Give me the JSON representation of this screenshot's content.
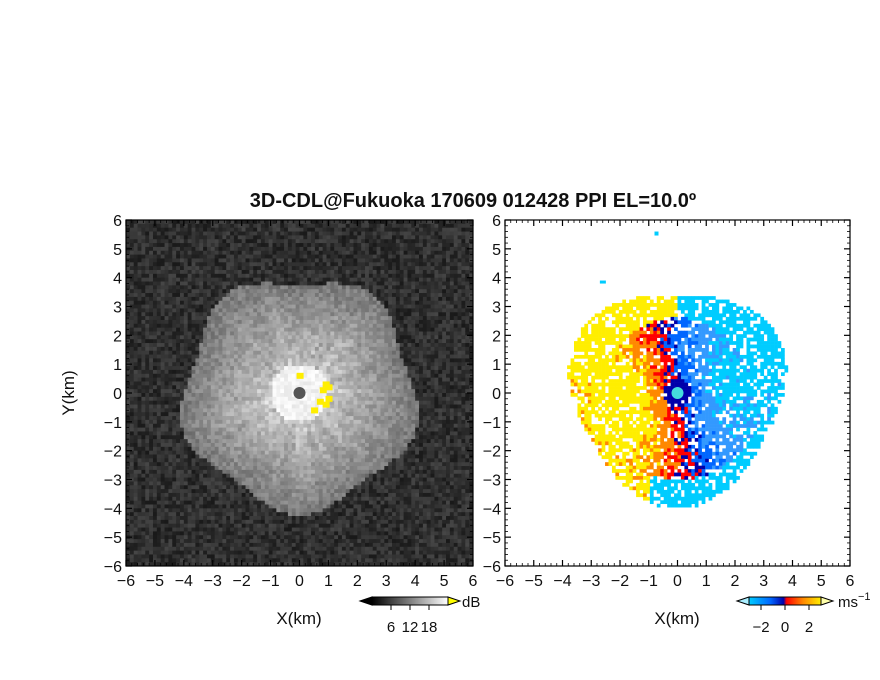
{
  "title": "3D-CDL@Fukuoka 170609 012428 PPI EL=10.0º",
  "chart_data": [
    {
      "type": "heatmap",
      "panel": "left",
      "field": "signal-to-noise ratio (grayscale)",
      "xlabel": "X(km)",
      "ylabel": "Y(km)",
      "xlim": [
        -6,
        6
      ],
      "ylim": [
        -6,
        6
      ],
      "xticks": [
        "−6",
        "−5",
        "−4",
        "−3",
        "−2",
        "−1",
        "0",
        "1",
        "2",
        "3",
        "4",
        "5",
        "6"
      ],
      "yticks": [
        "6",
        "5",
        "4",
        "3",
        "2",
        "1",
        "0",
        "−1",
        "−2",
        "−3",
        "−4",
        "−5",
        "−6"
      ],
      "colorbar": {
        "unit": "dB",
        "range": [
          0,
          24
        ],
        "ticks": [
          "6",
          "12",
          "18"
        ],
        "tick_values": [
          6,
          12,
          18
        ],
        "colors": [
          "#000000",
          "#ffffff"
        ]
      },
      "data_radius_km": 4.0,
      "center_marker": {
        "x": 0,
        "y": 0
      },
      "noise_background": "dark gray speckle",
      "highlight_color": "#ffee00"
    },
    {
      "type": "heatmap",
      "panel": "right",
      "field": "Doppler velocity (blue–red)",
      "xlabel": "X(km)",
      "ylabel": "",
      "xlim": [
        -6,
        6
      ],
      "ylim": [
        -6,
        6
      ],
      "xticks": [
        "−6",
        "−5",
        "−4",
        "−3",
        "−2",
        "−1",
        "0",
        "1",
        "2",
        "3",
        "4",
        "5",
        "6"
      ],
      "yticks": [
        "6",
        "5",
        "4",
        "3",
        "2",
        "1",
        "0",
        "−1",
        "−2",
        "−3",
        "−4",
        "−5",
        "−6"
      ],
      "colorbar": {
        "unit": "ms",
        "unit_sup": "−1",
        "range": [
          -3,
          3
        ],
        "ticks": [
          "−2",
          "0",
          "2"
        ],
        "tick_values": [
          -2,
          0,
          2
        ],
        "colors": [
          "#00ccff",
          "#0066ff",
          "#0000aa",
          "#ff0000",
          "#ff8800",
          "#ffee00"
        ]
      },
      "data_radius_km": 3.7,
      "center_marker": {
        "x": 0,
        "y": 0,
        "color": "#44dddd"
      }
    }
  ]
}
